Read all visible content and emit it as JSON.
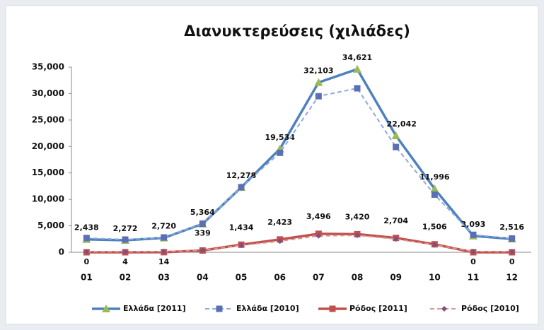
{
  "chart_data": {
    "type": "line",
    "title": "Διανυκτερεύσεις (χιλιάδες)",
    "categories": [
      "01",
      "02",
      "03",
      "04",
      "05",
      "06",
      "07",
      "08",
      "09",
      "10",
      "11",
      "12"
    ],
    "ylim": [
      0,
      35000
    ],
    "yticks": [
      0,
      {
        "value": 5000,
        "label": "5,000"
      },
      {
        "value": 10000,
        "label": "10,000"
      },
      {
        "value": 15000,
        "label": "15,000"
      },
      {
        "value": 20000,
        "label": "20,000"
      },
      {
        "value": 25000,
        "label": "25,000"
      },
      {
        "value": 30000,
        "label": "30,000"
      },
      {
        "value": 35000,
        "label": "35,000"
      }
    ],
    "grid": false,
    "legend": "bottom",
    "series": [
      {
        "name": "Ελλάδα [2011]",
        "color": "#4f81bd",
        "marker_color": "#9bbb59",
        "marker": "triangle",
        "line_style": "solid",
        "values": [
          2438,
          2272,
          2720,
          5364,
          12278,
          19534,
          32103,
          34621,
          22042,
          11996,
          3093,
          2516
        ],
        "value_labels": [
          "2,438",
          "2,272",
          "2,720",
          "5,364",
          "12,278",
          "19,534",
          "32,103",
          "34,621",
          "22,042",
          "11,996",
          "3,093",
          "2,516"
        ]
      },
      {
        "name": "Ελλάδα [2010]",
        "color": "#8eaadb",
        "marker_color": "#5b6fb5",
        "marker": "square",
        "line_style": "dashed",
        "values": [
          2700,
          2400,
          2800,
          5400,
          12300,
          18800,
          29500,
          31000,
          19900,
          10900,
          3300,
          2600
        ]
      },
      {
        "name": "Ρόδος [2011]",
        "color": "#c0504d",
        "marker_color": "#c0504d",
        "marker": "square",
        "line_style": "solid",
        "values": [
          0,
          4,
          14,
          339,
          1434,
          2423,
          3496,
          3420,
          2704,
          1506,
          0,
          0
        ],
        "value_labels": [
          "0",
          "4",
          "14",
          "339",
          "1,434",
          "2,423",
          "3,496",
          "3,420",
          "2,704",
          "1,506",
          "0",
          "0"
        ]
      },
      {
        "name": "Ρόδος [2010]",
        "color": "#d99694",
        "marker_color": "#7f4f7f",
        "marker": "diamond",
        "line_style": "dashed",
        "values": [
          100,
          100,
          150,
          350,
          1300,
          2100,
          3100,
          3200,
          2500,
          1400,
          150,
          100
        ]
      }
    ]
  }
}
